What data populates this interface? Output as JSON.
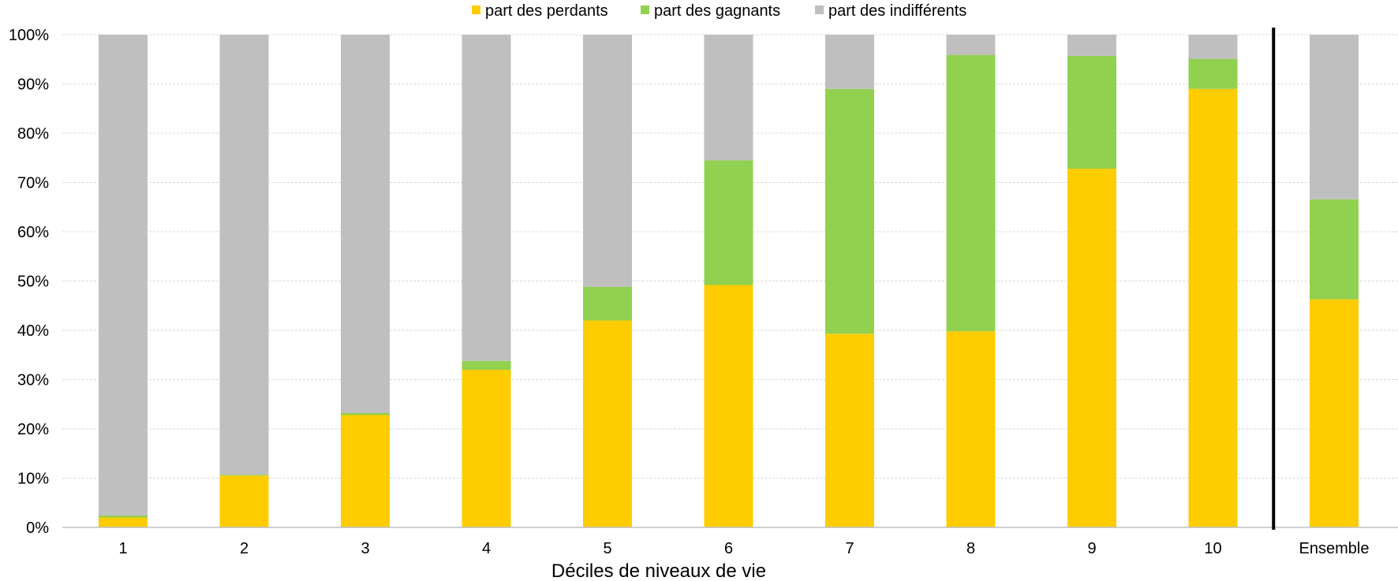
{
  "chart_data": {
    "type": "bar",
    "stacked": true,
    "categories": [
      "1",
      "2",
      "3",
      "4",
      "5",
      "6",
      "7",
      "8",
      "9",
      "10",
      "Ensemble"
    ],
    "series": [
      {
        "name": "part des perdants",
        "color": "#FFCC00",
        "values": [
          2.0,
          10.5,
          22.8,
          32.0,
          42.0,
          49.2,
          39.3,
          39.8,
          72.8,
          89.0,
          46.3
        ]
      },
      {
        "name": "part des gagnants",
        "color": "#92D050",
        "values": [
          0.4,
          0.2,
          0.4,
          1.8,
          6.8,
          25.3,
          49.7,
          56.1,
          22.9,
          6.1,
          20.3
        ]
      },
      {
        "name": "part des indifférents",
        "color": "#BFBFBF",
        "values": [
          97.6,
          89.3,
          76.8,
          66.2,
          51.2,
          25.5,
          11.0,
          4.1,
          4.3,
          4.9,
          33.4
        ]
      }
    ],
    "xlabel": "Déciles de niveaux de vie",
    "ylabel": "",
    "ylim": [
      0,
      100
    ],
    "yticks": [
      "0%",
      "10%",
      "20%",
      "30%",
      "40%",
      "50%",
      "60%",
      "70%",
      "80%",
      "90%",
      "100%"
    ],
    "grid": true,
    "legend_position": "top",
    "separator_before": "Ensemble"
  }
}
